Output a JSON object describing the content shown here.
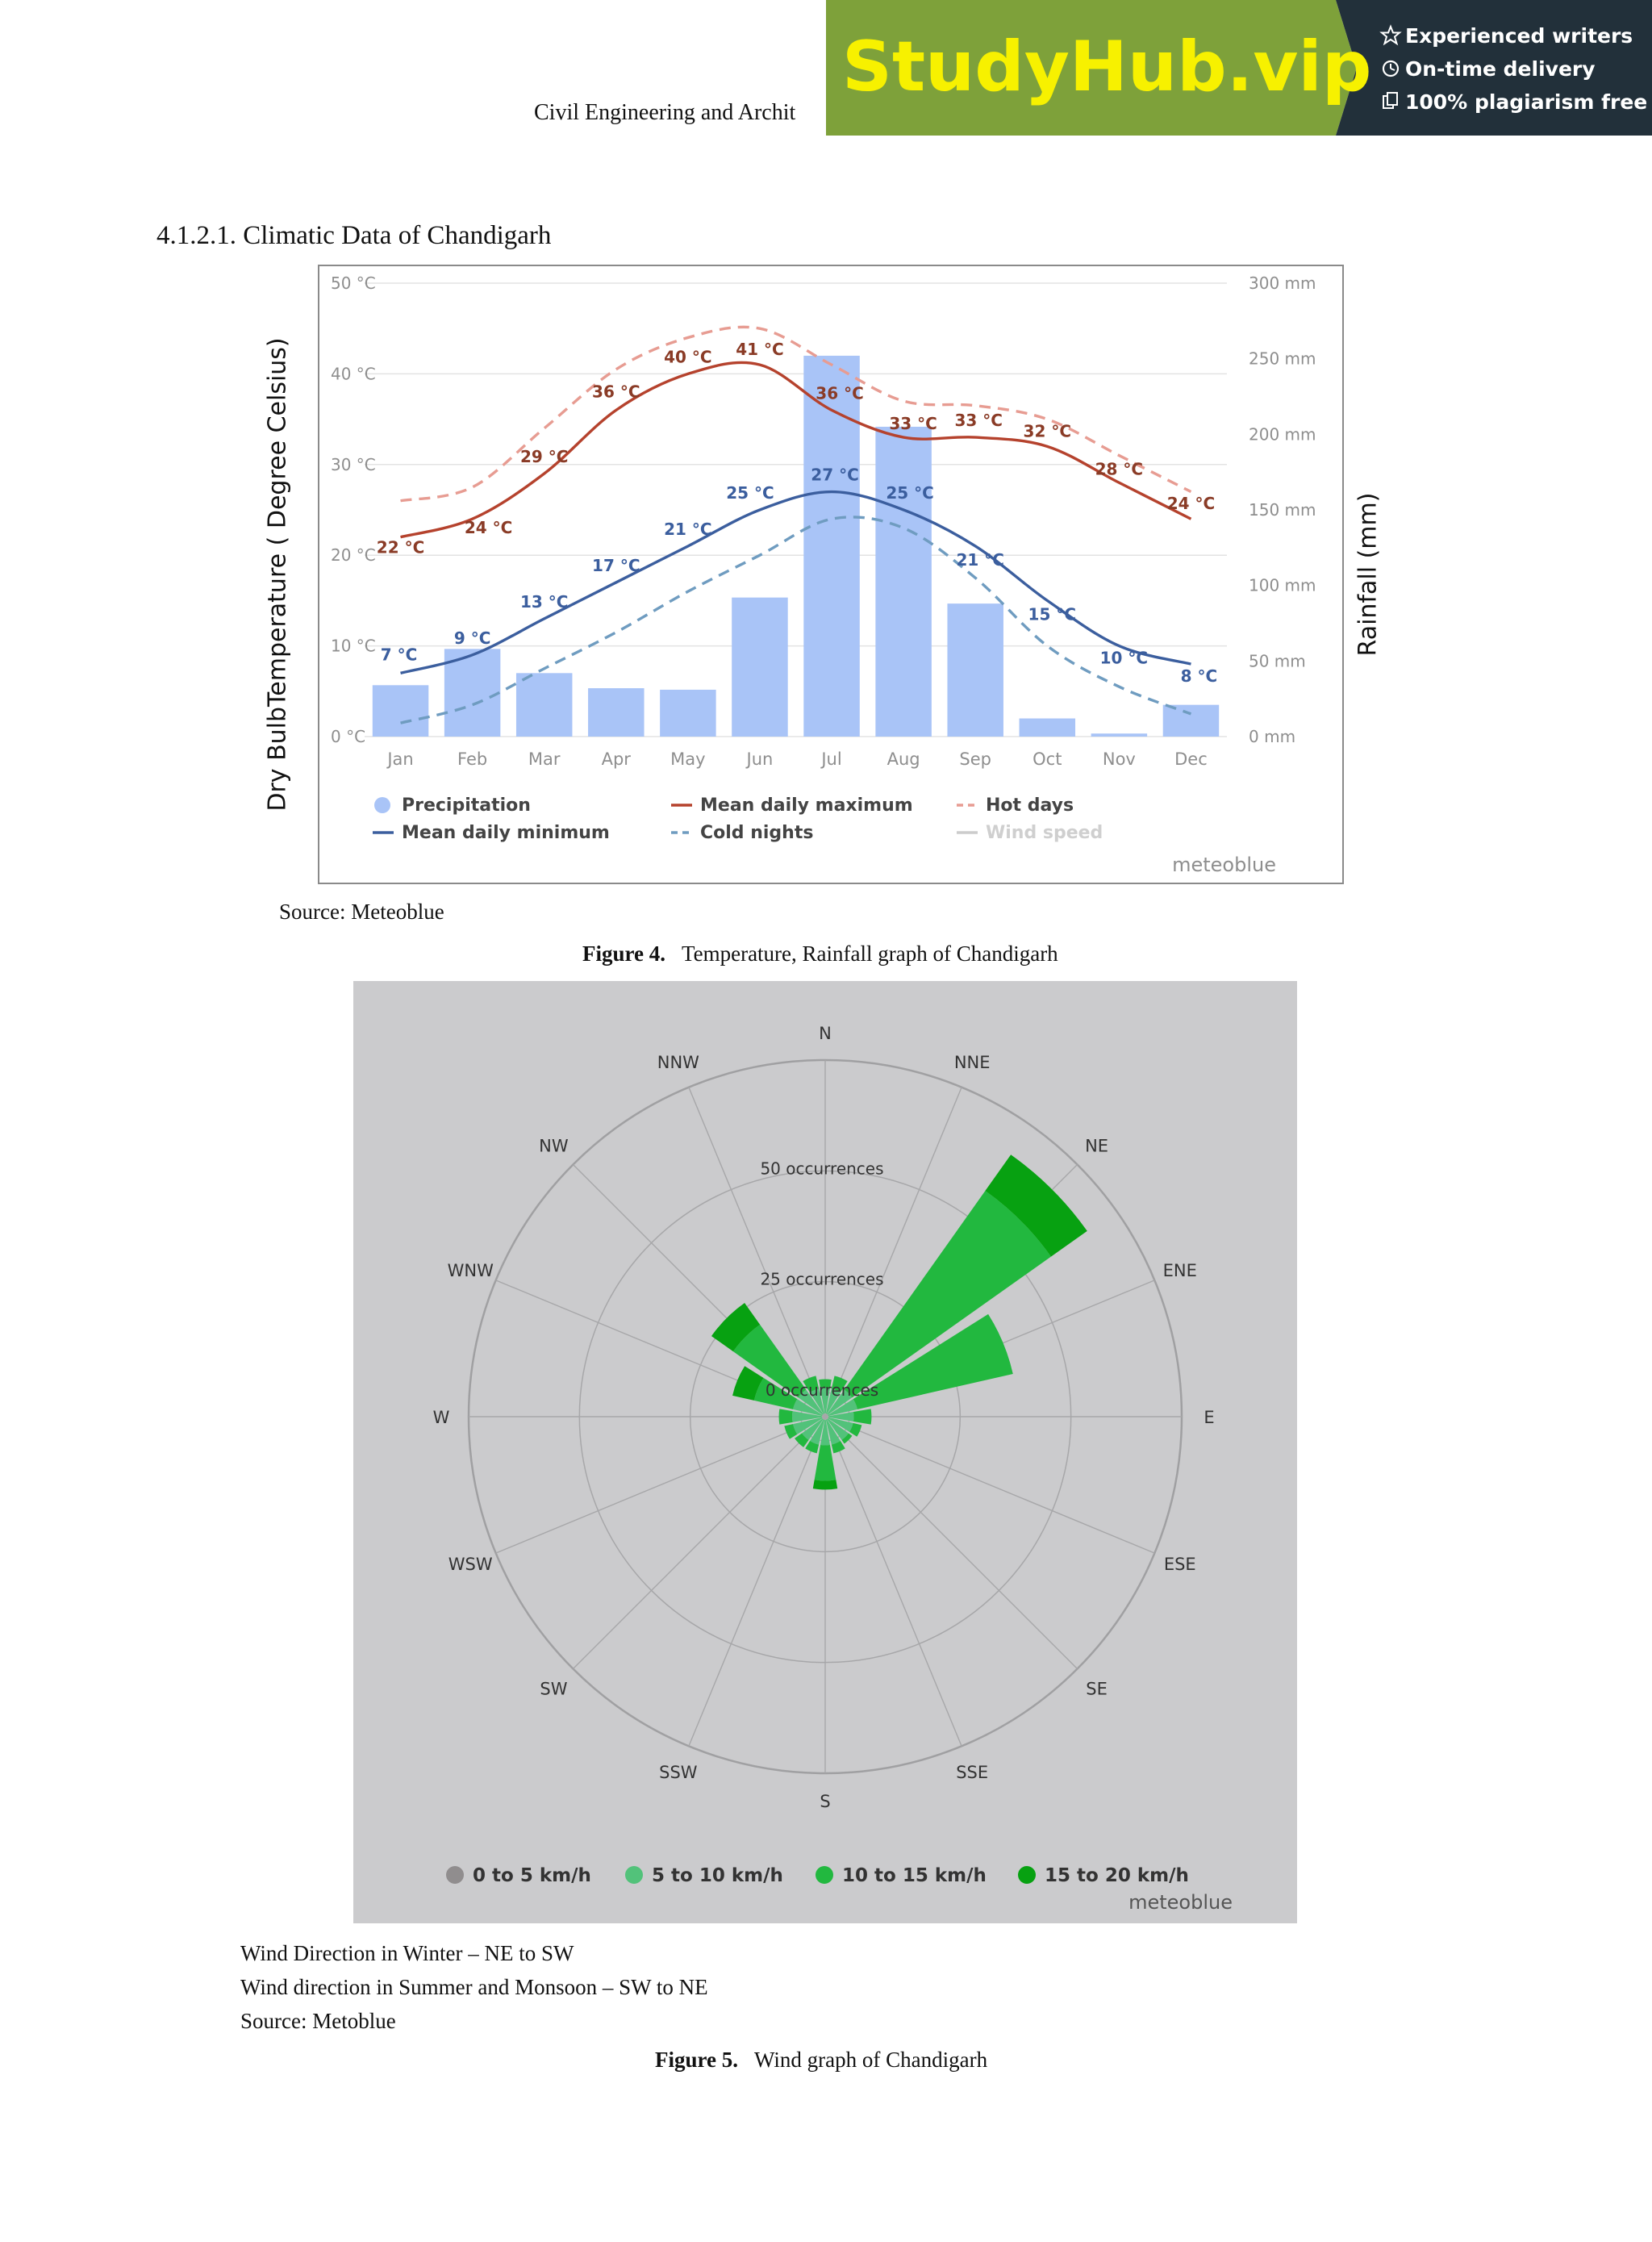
{
  "header": {
    "running_title": "Civil Engineering and Archit"
  },
  "banner": {
    "logo_text": "StudyHub.vip",
    "features": [
      "Experienced writers",
      "On-time delivery",
      "100% plagiarism free"
    ],
    "colors": {
      "green": "#7ea13a",
      "dark": "#22303a",
      "logo": "#f7f100"
    },
    "icons": [
      "star-icon",
      "clock-icon",
      "copy-icon"
    ]
  },
  "section_heading": "4.1.2.1. Climatic Data of Chandigarh",
  "figure4": {
    "ylabel_left": "Dry BulbTemperature ( Degree Celsius)",
    "ylabel_right": "Rainfall (mm)",
    "source": "Source: Meteoblue",
    "caption_label": "Figure 4.",
    "caption_text": "Temperature, Rainfall graph of Chandigarh"
  },
  "figure5": {
    "caption_label": "Figure 5.",
    "caption_text": "Wind graph of Chandigarh"
  },
  "notes": {
    "winter": "Wind Direction in Winter – NE to SW",
    "summer": "Wind direction in Summer and Monsoon – SW to NE",
    "source": "Source: Metoblue"
  },
  "chart_data": [
    {
      "type": "bar+line",
      "categories": [
        "Jan",
        "Feb",
        "Mar",
        "Apr",
        "May",
        "Jun",
        "Jul",
        "Aug",
        "Sep",
        "Oct",
        "Nov",
        "Dec"
      ],
      "left_axis": {
        "ticks": [
          "0 °C",
          "10 °C",
          "20 °C",
          "30 °C",
          "40 °C",
          "50 °C"
        ],
        "ylim": [
          0,
          50
        ]
      },
      "right_axis": {
        "ticks": [
          "0 mm",
          "50 mm",
          "100 mm",
          "150 mm",
          "200 mm",
          "250 mm",
          "300 mm"
        ],
        "ylim": [
          0,
          300
        ]
      },
      "series": [
        {
          "name": "Precipitation",
          "kind": "bar",
          "axis": "right",
          "color": "#a9c4f7",
          "values": [
            34,
            58,
            42,
            32,
            31,
            92,
            252,
            205,
            88,
            12,
            2,
            21
          ]
        },
        {
          "name": "Mean daily maximum",
          "kind": "line",
          "axis": "left",
          "color": "#b5422d",
          "values": [
            22,
            24,
            29,
            36,
            40,
            41,
            36,
            33,
            33,
            32,
            28,
            24
          ],
          "labels": [
            "22 °C",
            "24 °C",
            "29 °C",
            "36 °C",
            "40 °C",
            "41 °C",
            "36 °C",
            "33 °C",
            "33 °C",
            "32 °C",
            "28 °C",
            "24 °C"
          ]
        },
        {
          "name": "Hot days",
          "kind": "dashed",
          "axis": "left",
          "color": "#e79c92",
          "values": [
            26,
            27.5,
            34,
            40.5,
            44,
            45,
            41,
            37,
            36.5,
            35,
            31,
            27
          ]
        },
        {
          "name": "Mean daily minimum",
          "kind": "line",
          "axis": "left",
          "color": "#3b5e9e",
          "values": [
            7,
            9,
            13,
            17,
            21,
            25,
            27,
            25,
            21,
            15,
            10,
            8
          ],
          "labels": [
            "7 °C",
            "9 °C",
            "13 °C",
            "17 °C",
            "21 °C",
            "25 °C",
            "27 °C",
            "25 °C",
            "21 °C",
            "15 °C",
            "10 °C",
            "8 °C"
          ]
        },
        {
          "name": "Cold nights",
          "kind": "dashed",
          "axis": "left",
          "color": "#6f9cc0",
          "values": [
            1.5,
            3.5,
            7.5,
            11.5,
            16,
            20,
            24,
            23,
            17.5,
            10,
            5.5,
            2.5
          ]
        },
        {
          "name": "Wind speed",
          "kind": "legend-only",
          "color": "#cccccc"
        }
      ],
      "watermark": "meteoblue",
      "grid": true
    },
    {
      "type": "polar-bar",
      "directions": [
        "N",
        "NNE",
        "NE",
        "ENE",
        "E",
        "ESE",
        "SE",
        "SSE",
        "S",
        "SSW",
        "SW",
        "WSW",
        "W",
        "WNW",
        "NW",
        "NNW"
      ],
      "ring_labels": [
        "0 occurrences",
        "25 occurrences",
        "50 occurrences"
      ],
      "rlim": [
        0,
        75
      ],
      "series": [
        {
          "name": "0 to 5 km/h",
          "color": "#908d8e"
        },
        {
          "name": "5 to 10 km/h",
          "color": "#52c27a"
        },
        {
          "name": "10 to 15 km/h",
          "color": "#22b83f"
        },
        {
          "name": "15 to 20 km/h",
          "color": "#07a111"
        }
      ],
      "wedges": [
        {
          "dir": "N",
          "stack": [
            0,
            1,
            2,
            0
          ]
        },
        {
          "dir": "NNE",
          "stack": [
            0,
            1,
            3,
            0
          ]
        },
        {
          "dir": "NE",
          "stack": [
            0,
            2,
            55,
            10
          ]
        },
        {
          "dir": "ENE",
          "stack": [
            0,
            2,
            36,
            0
          ]
        },
        {
          "dir": "E",
          "stack": [
            0,
            1,
            4,
            0
          ]
        },
        {
          "dir": "ESE",
          "stack": [
            0,
            1,
            2,
            0
          ]
        },
        {
          "dir": "SE",
          "stack": [
            0,
            1,
            1,
            0
          ]
        },
        {
          "dir": "SSE",
          "stack": [
            0,
            1,
            2,
            0
          ]
        },
        {
          "dir": "S",
          "stack": [
            0,
            1,
            8,
            2
          ]
        },
        {
          "dir": "SSW",
          "stack": [
            0,
            1,
            2,
            0
          ]
        },
        {
          "dir": "SW",
          "stack": [
            0,
            1,
            2,
            0
          ]
        },
        {
          "dir": "WSW",
          "stack": [
            0,
            2,
            2,
            0
          ]
        },
        {
          "dir": "W",
          "stack": [
            0,
            2,
            3,
            0
          ]
        },
        {
          "dir": "WNW",
          "stack": [
            0,
            2,
            9,
            5
          ]
        },
        {
          "dir": "NW",
          "stack": [
            0,
            2,
            18,
            6
          ]
        },
        {
          "dir": "NNW",
          "stack": [
            0,
            1,
            3,
            0
          ]
        }
      ],
      "watermark": "meteoblue"
    }
  ]
}
